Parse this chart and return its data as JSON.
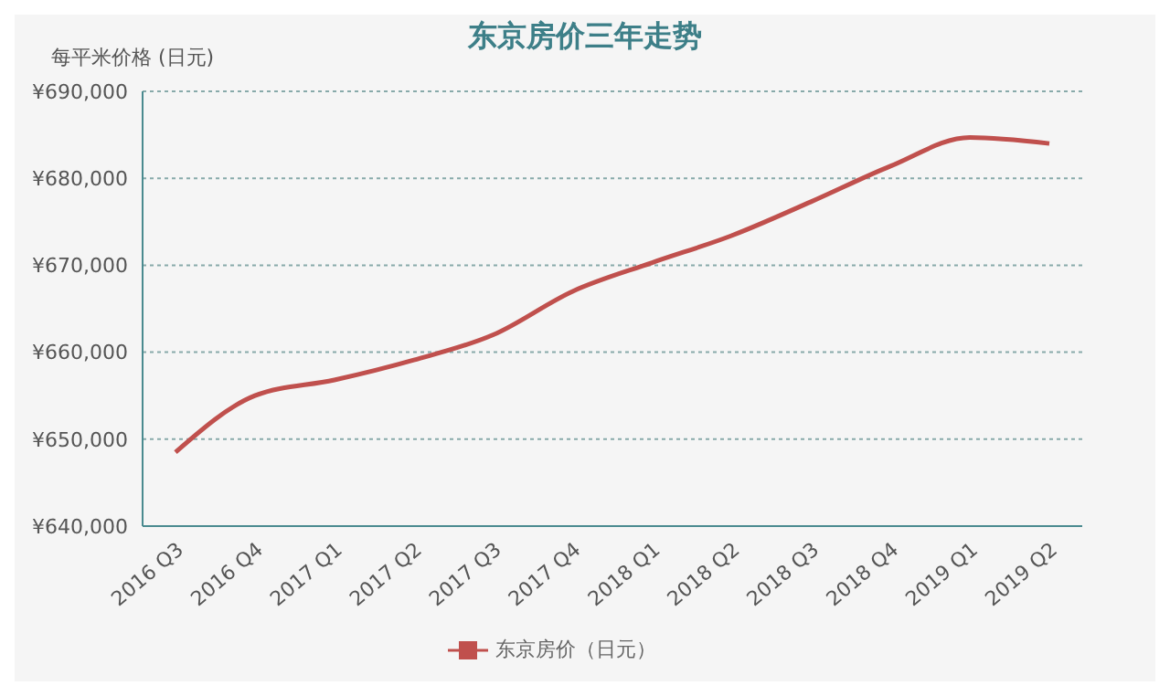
{
  "chart_data": {
    "type": "line",
    "title": "东京房价三年走势",
    "ylabel": "每平米价格 (日元)",
    "categories": [
      "2016 Q3",
      "2016 Q4",
      "2017 Q1",
      "2017 Q2",
      "2017 Q3",
      "2017 Q4",
      "2018 Q1",
      "2018 Q2",
      "2018 Q3",
      "2018 Q4",
      "2019 Q1",
      "2019 Q2"
    ],
    "series": [
      {
        "name": "东京房价（日元）",
        "color": "#c0504d",
        "values": [
          648500,
          655000,
          656800,
          659100,
          662000,
          667000,
          670300,
          673400,
          677300,
          681400,
          684700,
          684000
        ]
      }
    ],
    "ylim": [
      640000,
      690000
    ],
    "yticks": [
      {
        "value": 640000,
        "label": "¥640,000"
      },
      {
        "value": 650000,
        "label": "¥650,000"
      },
      {
        "value": 660000,
        "label": "¥660,000"
      },
      {
        "value": 670000,
        "label": "¥670,000"
      },
      {
        "value": 680000,
        "label": "¥680,000"
      },
      {
        "value": 690000,
        "label": "¥690,000"
      }
    ],
    "grid": "y",
    "legend": "bottom",
    "marker": "none",
    "line_style": "solid"
  }
}
